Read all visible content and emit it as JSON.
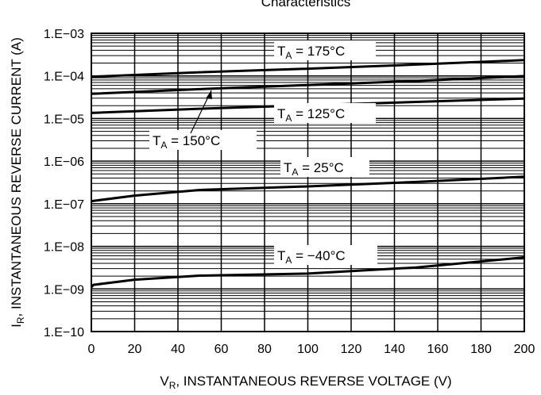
{
  "chart_data": {
    "type": "line",
    "title": "Characteristics",
    "xlabel": {
      "main": "V",
      "sub": "R",
      "rest": ", INSTANTANEOUS REVERSE VOLTAGE (V)"
    },
    "ylabel": {
      "main": "I",
      "sub": "R",
      "rest": ", INSTANTANEOUS REVERSE CURRENT (A)"
    },
    "xlim": [
      0,
      200
    ],
    "ylim": [
      1e-10,
      0.001
    ],
    "yscale": "log",
    "x_ticks": [
      0,
      20,
      40,
      60,
      80,
      100,
      120,
      140,
      160,
      180,
      200
    ],
    "y_ticks": [
      "1.E−03",
      "1.E−04",
      "1.E−05",
      "1.E−06",
      "1.E−07",
      "1.E−08",
      "1.E−09",
      "1.E−10"
    ],
    "grid": true,
    "series": [
      {
        "name": "TA = 175°C",
        "label": {
          "pre": "T",
          "sub": "A",
          "post": " = 175°C"
        },
        "x": [
          0,
          50,
          100,
          150,
          200
        ],
        "y": [
          9.6e-05,
          0.000122,
          0.000148,
          0.000185,
          0.000235
        ]
      },
      {
        "name": "TA = 150°C",
        "label": {
          "pre": "T",
          "sub": "A",
          "post": " = 150°C"
        },
        "x": [
          0,
          50,
          100,
          150,
          200
        ],
        "y": [
          3.8e-05,
          4.9e-05,
          6.1e-05,
          7.6e-05,
          9.9e-05
        ]
      },
      {
        "name": "TA = 125°C",
        "label": {
          "pre": "T",
          "sub": "A",
          "post": " = 125°C"
        },
        "x": [
          0,
          50,
          100,
          150,
          200
        ],
        "y": [
          1.35e-05,
          1.7e-05,
          2.05e-05,
          2.45e-05,
          2.95e-05
        ]
      },
      {
        "name": "TA = 25°C",
        "label": {
          "pre": "T",
          "sub": "A",
          "post": " = 25°C"
        },
        "x": [
          0,
          20,
          50,
          100,
          150,
          200
        ],
        "y": [
          1.15e-07,
          1.55e-07,
          2.1e-07,
          2.55e-07,
          3.25e-07,
          4.3e-07
        ]
      },
      {
        "name": "TA = −40°C",
        "label": {
          "pre": "T",
          "sub": "A",
          "post": " = −40°C"
        },
        "x": [
          0,
          1,
          20,
          50,
          100,
          150,
          200
        ],
        "y": [
          1.1e-09,
          1.25e-09,
          1.65e-09,
          2.05e-09,
          2.3e-09,
          3.2e-09,
          5.5e-09
        ]
      }
    ]
  }
}
